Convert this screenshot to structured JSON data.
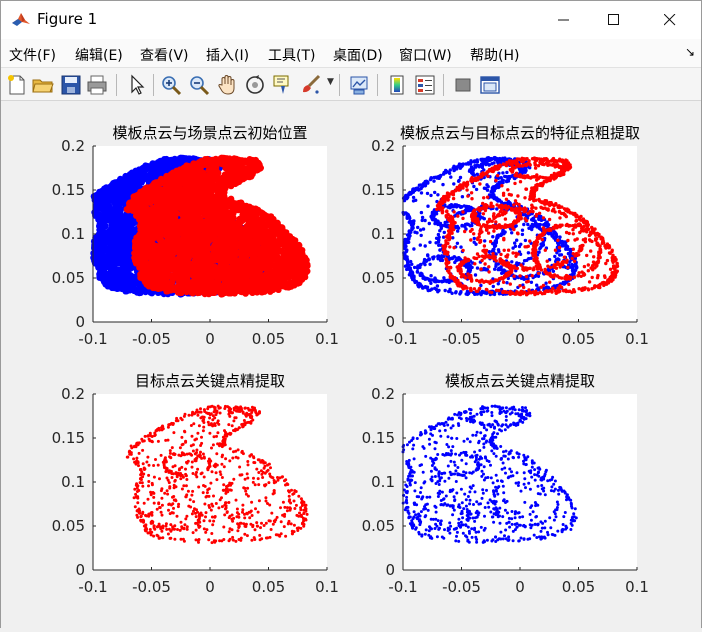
{
  "window": {
    "title": "Figure 1"
  },
  "menu": {
    "items": [
      "文件(F)",
      "编辑(E)",
      "查看(V)",
      "插入(I)",
      "工具(T)",
      "桌面(D)",
      "窗口(W)",
      "帮助(H)"
    ]
  },
  "toolbar": {
    "buttons": [
      "new-figure",
      "open-file",
      "save",
      "print",
      "edit-plot",
      "zoom-in",
      "zoom-out",
      "pan",
      "rotate-3d",
      "data-cursor",
      "brush",
      "link-plot",
      "colorbar",
      "legend",
      "hide-plot-tools",
      "show-plot-tools"
    ]
  },
  "colors": {
    "template": "#0000ff",
    "target": "#ff0000"
  },
  "chart_data": [
    {
      "type": "scatter",
      "title": "模板点云与场景点云初始位置",
      "xlim": [
        -0.1,
        0.1
      ],
      "ylim": [
        0,
        0.2
      ],
      "xticks": [
        "-0.1",
        "-0.05",
        "0",
        "0.05",
        "0.1"
      ],
      "yticks": [
        "0",
        "0.05",
        "0.1",
        "0.15",
        "0.2"
      ],
      "series": [
        {
          "color": "#0000ff",
          "style": "dense",
          "offset": [
            -0.035,
            0.0
          ]
        },
        {
          "color": "#ff0000",
          "style": "dense",
          "offset": [
            0.0,
            0.0
          ]
        }
      ]
    },
    {
      "type": "scatter",
      "title": "模板点云与目标点云的特征点粗提取",
      "xlim": [
        -0.1,
        0.1
      ],
      "ylim": [
        0,
        0.2
      ],
      "xticks": [
        "-0.1",
        "-0.05",
        "0",
        "0.05",
        "0.1"
      ],
      "yticks": [
        "0",
        "0.05",
        "0.1",
        "0.15",
        "0.2"
      ],
      "series": [
        {
          "color": "#0000ff",
          "style": "medium",
          "offset": [
            -0.035,
            0.0
          ]
        },
        {
          "color": "#ff0000",
          "style": "medium",
          "offset": [
            0.0,
            0.0
          ]
        }
      ]
    },
    {
      "type": "scatter",
      "title": "目标点云关键点精提取",
      "xlim": [
        -0.1,
        0.1
      ],
      "ylim": [
        0,
        0.2
      ],
      "xticks": [
        "-0.1",
        "-0.05",
        "0",
        "0.05",
        "0.1"
      ],
      "yticks": [
        "0",
        "0.05",
        "0.1",
        "0.15",
        "0.2"
      ],
      "series": [
        {
          "color": "#ff0000",
          "style": "sparse",
          "offset": [
            0.0,
            0.0
          ]
        }
      ]
    },
    {
      "type": "scatter",
      "title": "模板点云关键点精提取",
      "xlim": [
        -0.1,
        0.1
      ],
      "ylim": [
        0,
        0.2
      ],
      "xticks": [
        "-0.1",
        "-0.05",
        "0",
        "0.05",
        "0.1"
      ],
      "yticks": [
        "0",
        "0.05",
        "0.1",
        "0.15",
        "0.2"
      ],
      "series": [
        {
          "color": "#0000ff",
          "style": "sparse",
          "offset": [
            -0.035,
            0.0
          ]
        }
      ]
    }
  ]
}
